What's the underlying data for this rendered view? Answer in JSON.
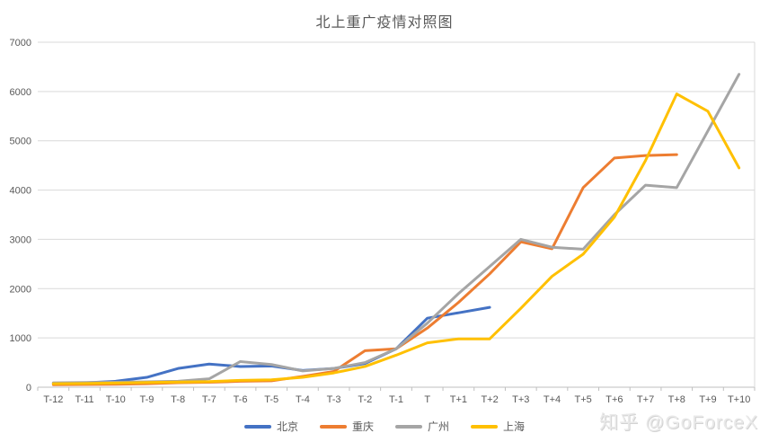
{
  "title": "北上重广疫情对照图",
  "watermark": "知乎 @GoForceX",
  "colors": {
    "grid": "#D9D9D9",
    "axis": "#BFBFBF",
    "text": "#595959",
    "beijing": "#4472C4",
    "chongqing": "#ED7D31",
    "guangzhou": "#A5A5A5",
    "shanghai": "#FFC000"
  },
  "chart_data": {
    "type": "line",
    "title": "北上重广疫情对照图",
    "categories": [
      "T-12",
      "T-11",
      "T-10",
      "T-9",
      "T-8",
      "T-7",
      "T-6",
      "T-5",
      "T-4",
      "T-3",
      "T-2",
      "T-1",
      "T",
      "T+1",
      "T+2",
      "T+3",
      "T+4",
      "T+5",
      "T+6",
      "T+7",
      "T+8",
      "T+9",
      "T+10"
    ],
    "series": [
      {
        "name": "北京",
        "key": "beijing",
        "color": "#4472C4",
        "values": [
          80,
          90,
          120,
          200,
          380,
          470,
          420,
          430,
          340,
          380,
          480,
          780,
          1400,
          1510,
          1620
        ]
      },
      {
        "name": "重庆",
        "key": "chongqing",
        "color": "#ED7D31",
        "values": [
          50,
          55,
          60,
          70,
          90,
          100,
          120,
          130,
          220,
          320,
          740,
          780,
          1200,
          1720,
          2300,
          2950,
          2810,
          4050,
          4650,
          4700,
          4720
        ]
      },
      {
        "name": "广州",
        "key": "guangzhou",
        "color": "#A5A5A5",
        "values": [
          90,
          95,
          100,
          110,
          120,
          170,
          520,
          460,
          330,
          380,
          500,
          780,
          1300,
          1900,
          2450,
          3000,
          2840,
          2800,
          3500,
          4100,
          4050,
          5200,
          6350
        ]
      },
      {
        "name": "上海",
        "key": "shanghai",
        "color": "#FFC000",
        "values": [
          70,
          75,
          85,
          95,
          105,
          115,
          140,
          150,
          200,
          290,
          420,
          650,
          900,
          980,
          980,
          1600,
          2250,
          2700,
          3450,
          4600,
          5950,
          5600,
          4450
        ]
      }
    ],
    "ylim": [
      0,
      7000
    ],
    "ytick_interval": 1000,
    "grid": true,
    "legend_position": "bottom",
    "xlabel": "",
    "ylabel": ""
  }
}
